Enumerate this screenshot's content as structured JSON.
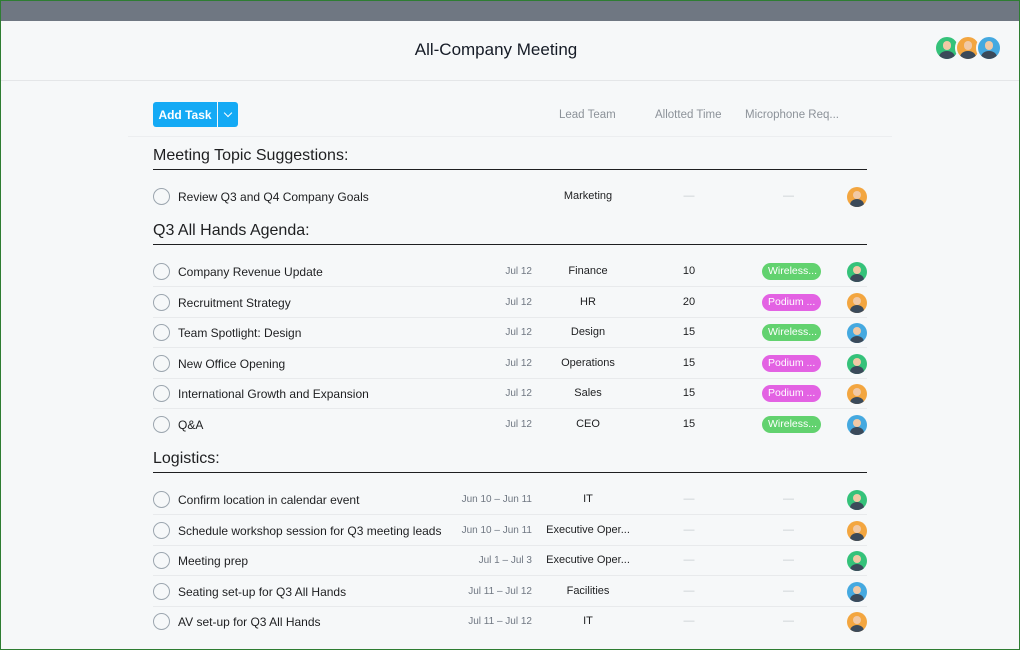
{
  "header": {
    "title": "All-Company Meeting",
    "members": [
      "member-1",
      "member-2",
      "member-3"
    ]
  },
  "toolbar": {
    "add_task_label": "Add Task",
    "columns": [
      "Lead Team",
      "Allotted Time",
      "Microphone Req..."
    ]
  },
  "sections": [
    {
      "title": "Meeting Topic Suggestions:",
      "tasks": [
        {
          "name": "Review Q3 and Q4 Company Goals",
          "date": "",
          "team": "Marketing",
          "time": "—",
          "mic": "—",
          "mic_color": "",
          "avatar": "orange"
        }
      ]
    },
    {
      "title": "Q3 All Hands Agenda:",
      "tasks": [
        {
          "name": "Company Revenue Update",
          "date": "Jul 12",
          "team": "Finance",
          "time": "10",
          "mic": "Wireless...",
          "mic_color": "green",
          "avatar": "green"
        },
        {
          "name": "Recruitment Strategy",
          "date": "Jul 12",
          "team": "HR",
          "time": "20",
          "mic": "Podium ...",
          "mic_color": "pink",
          "avatar": "orange"
        },
        {
          "name": "Team Spotlight: Design",
          "date": "Jul 12",
          "team": "Design",
          "time": "15",
          "mic": "Wireless...",
          "mic_color": "green",
          "avatar": "blue"
        },
        {
          "name": "New Office Opening",
          "date": "Jul 12",
          "team": "Operations",
          "time": "15",
          "mic": "Podium ...",
          "mic_color": "pink",
          "avatar": "green"
        },
        {
          "name": "International Growth and Expansion",
          "date": "Jul 12",
          "team": "Sales",
          "time": "15",
          "mic": "Podium ...",
          "mic_color": "pink",
          "avatar": "orange"
        },
        {
          "name": "Q&A",
          "date": "Jul 12",
          "team": "CEO",
          "time": "15",
          "mic": "Wireless...",
          "mic_color": "green",
          "avatar": "blue"
        }
      ]
    },
    {
      "title": "Logistics:",
      "tasks": [
        {
          "name": "Confirm location in calendar event",
          "date": "Jun 10 – Jun 11",
          "team": "IT",
          "time": "—",
          "mic": "—",
          "mic_color": "",
          "avatar": "green"
        },
        {
          "name": "Schedule workshop session for Q3 meeting leads",
          "date": "Jun 10 – Jun 11",
          "team": "Executive Oper...",
          "time": "—",
          "mic": "—",
          "mic_color": "",
          "avatar": "orange"
        },
        {
          "name": "Meeting prep",
          "date": "Jul 1 – Jul 3",
          "team": "Executive Oper...",
          "time": "—",
          "mic": "—",
          "mic_color": "",
          "avatar": "green"
        },
        {
          "name": "Seating set-up for Q3 All Hands",
          "date": "Jul 11 – Jul 12",
          "team": "Facilities",
          "time": "—",
          "mic": "—",
          "mic_color": "",
          "avatar": "blue"
        },
        {
          "name": "AV set-up for Q3 All Hands",
          "date": "Jul 11 – Jul 12",
          "team": "IT",
          "time": "—",
          "mic": "—",
          "mic_color": "",
          "avatar": "orange"
        }
      ]
    }
  ]
}
